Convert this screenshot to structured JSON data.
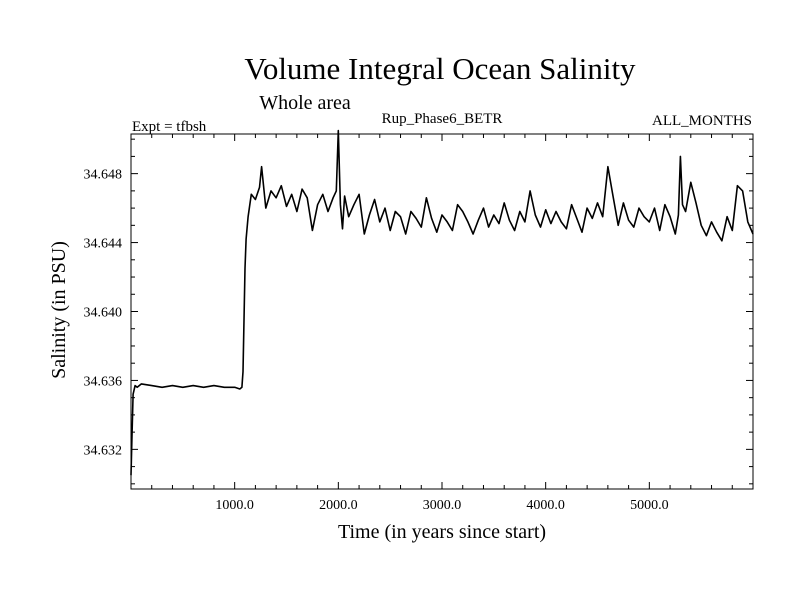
{
  "chart_data": {
    "type": "line",
    "title": "Volume Integral Ocean Salinity",
    "subtitle": "Whole area",
    "run_label": "Rup_Phase6_BETR",
    "expt_label": "Expt = tfbsh",
    "months_label": "ALL_MONTHS",
    "xlabel": "Time (in years since start)",
    "ylabel": "Salinity (in PSU)",
    "xlim": [
      0,
      6000
    ],
    "ylim": [
      34.6297,
      34.6503
    ],
    "x_ticks": [
      {
        "value": 1000,
        "label": "1000.0"
      },
      {
        "value": 2000,
        "label": "2000.0"
      },
      {
        "value": 3000,
        "label": "3000.0"
      },
      {
        "value": 4000,
        "label": "4000.0"
      },
      {
        "value": 5000,
        "label": "5000.0"
      }
    ],
    "y_ticks": [
      {
        "value": 34.632,
        "label": "34.632"
      },
      {
        "value": 34.636,
        "label": "34.636"
      },
      {
        "value": 34.64,
        "label": "34.640"
      },
      {
        "value": 34.644,
        "label": "34.644"
      },
      {
        "value": 34.648,
        "label": "34.648"
      }
    ],
    "series": [
      {
        "name": "Salinity",
        "color": "#000000",
        "x": [
          0,
          10,
          20,
          40,
          60,
          100,
          200,
          300,
          400,
          500,
          600,
          700,
          800,
          900,
          1000,
          1050,
          1070,
          1080,
          1090,
          1100,
          1110,
          1130,
          1160,
          1200,
          1240,
          1260,
          1300,
          1350,
          1400,
          1450,
          1500,
          1550,
          1600,
          1650,
          1700,
          1750,
          1800,
          1850,
          1900,
          1950,
          1980,
          2000,
          2020,
          2040,
          2060,
          2100,
          2150,
          2200,
          2250,
          2300,
          2350,
          2400,
          2450,
          2500,
          2550,
          2600,
          2650,
          2700,
          2750,
          2800,
          2850,
          2900,
          2950,
          3000,
          3050,
          3100,
          3150,
          3200,
          3250,
          3300,
          3350,
          3400,
          3450,
          3500,
          3550,
          3600,
          3650,
          3700,
          3750,
          3800,
          3850,
          3900,
          3950,
          4000,
          4050,
          4100,
          4150,
          4200,
          4250,
          4300,
          4350,
          4400,
          4450,
          4500,
          4550,
          4600,
          4650,
          4700,
          4750,
          4800,
          4850,
          4900,
          4950,
          5000,
          5050,
          5100,
          5150,
          5200,
          5250,
          5280,
          5300,
          5320,
          5350,
          5400,
          5450,
          5500,
          5550,
          5600,
          5650,
          5700,
          5750,
          5800,
          5850,
          5900,
          5950,
          6000
        ],
        "values": [
          34.6305,
          34.6328,
          34.6352,
          34.6357,
          34.6356,
          34.6358,
          34.6357,
          34.6356,
          34.6357,
          34.6356,
          34.6357,
          34.6356,
          34.6357,
          34.6356,
          34.6356,
          34.6355,
          34.6356,
          34.6365,
          34.6395,
          34.6425,
          34.6442,
          34.6455,
          34.6468,
          34.6465,
          34.6472,
          34.6484,
          34.646,
          34.647,
          34.6466,
          34.6473,
          34.6461,
          34.6468,
          34.6458,
          34.6471,
          34.6466,
          34.6447,
          34.6462,
          34.6468,
          34.6458,
          34.6466,
          34.647,
          34.6505,
          34.6462,
          34.6448,
          34.6467,
          34.6455,
          34.6462,
          34.6468,
          34.6445,
          34.6456,
          34.6465,
          34.6452,
          34.646,
          34.6447,
          34.6458,
          34.6455,
          34.6445,
          34.6458,
          34.6454,
          34.6449,
          34.6466,
          34.6454,
          34.6446,
          34.6456,
          34.6452,
          34.6447,
          34.6462,
          34.6458,
          34.6452,
          34.6445,
          34.6453,
          34.646,
          34.6449,
          34.6456,
          34.6451,
          34.6463,
          34.6453,
          34.6447,
          34.6458,
          34.6452,
          34.647,
          34.6456,
          34.6449,
          34.6459,
          34.6451,
          34.6458,
          34.6452,
          34.6448,
          34.6462,
          34.6454,
          34.6446,
          34.646,
          34.6454,
          34.6463,
          34.6455,
          34.6484,
          34.6467,
          34.645,
          34.6463,
          34.6453,
          34.6449,
          34.646,
          34.6455,
          34.6452,
          34.646,
          34.6447,
          34.6462,
          34.6455,
          34.6445,
          34.6456,
          34.649,
          34.6462,
          34.6458,
          34.6475,
          34.6463,
          34.645,
          34.6444,
          34.6452,
          34.6446,
          34.6441,
          34.6455,
          34.6447,
          34.6473,
          34.647,
          34.6452,
          34.6445
        ]
      }
    ]
  }
}
